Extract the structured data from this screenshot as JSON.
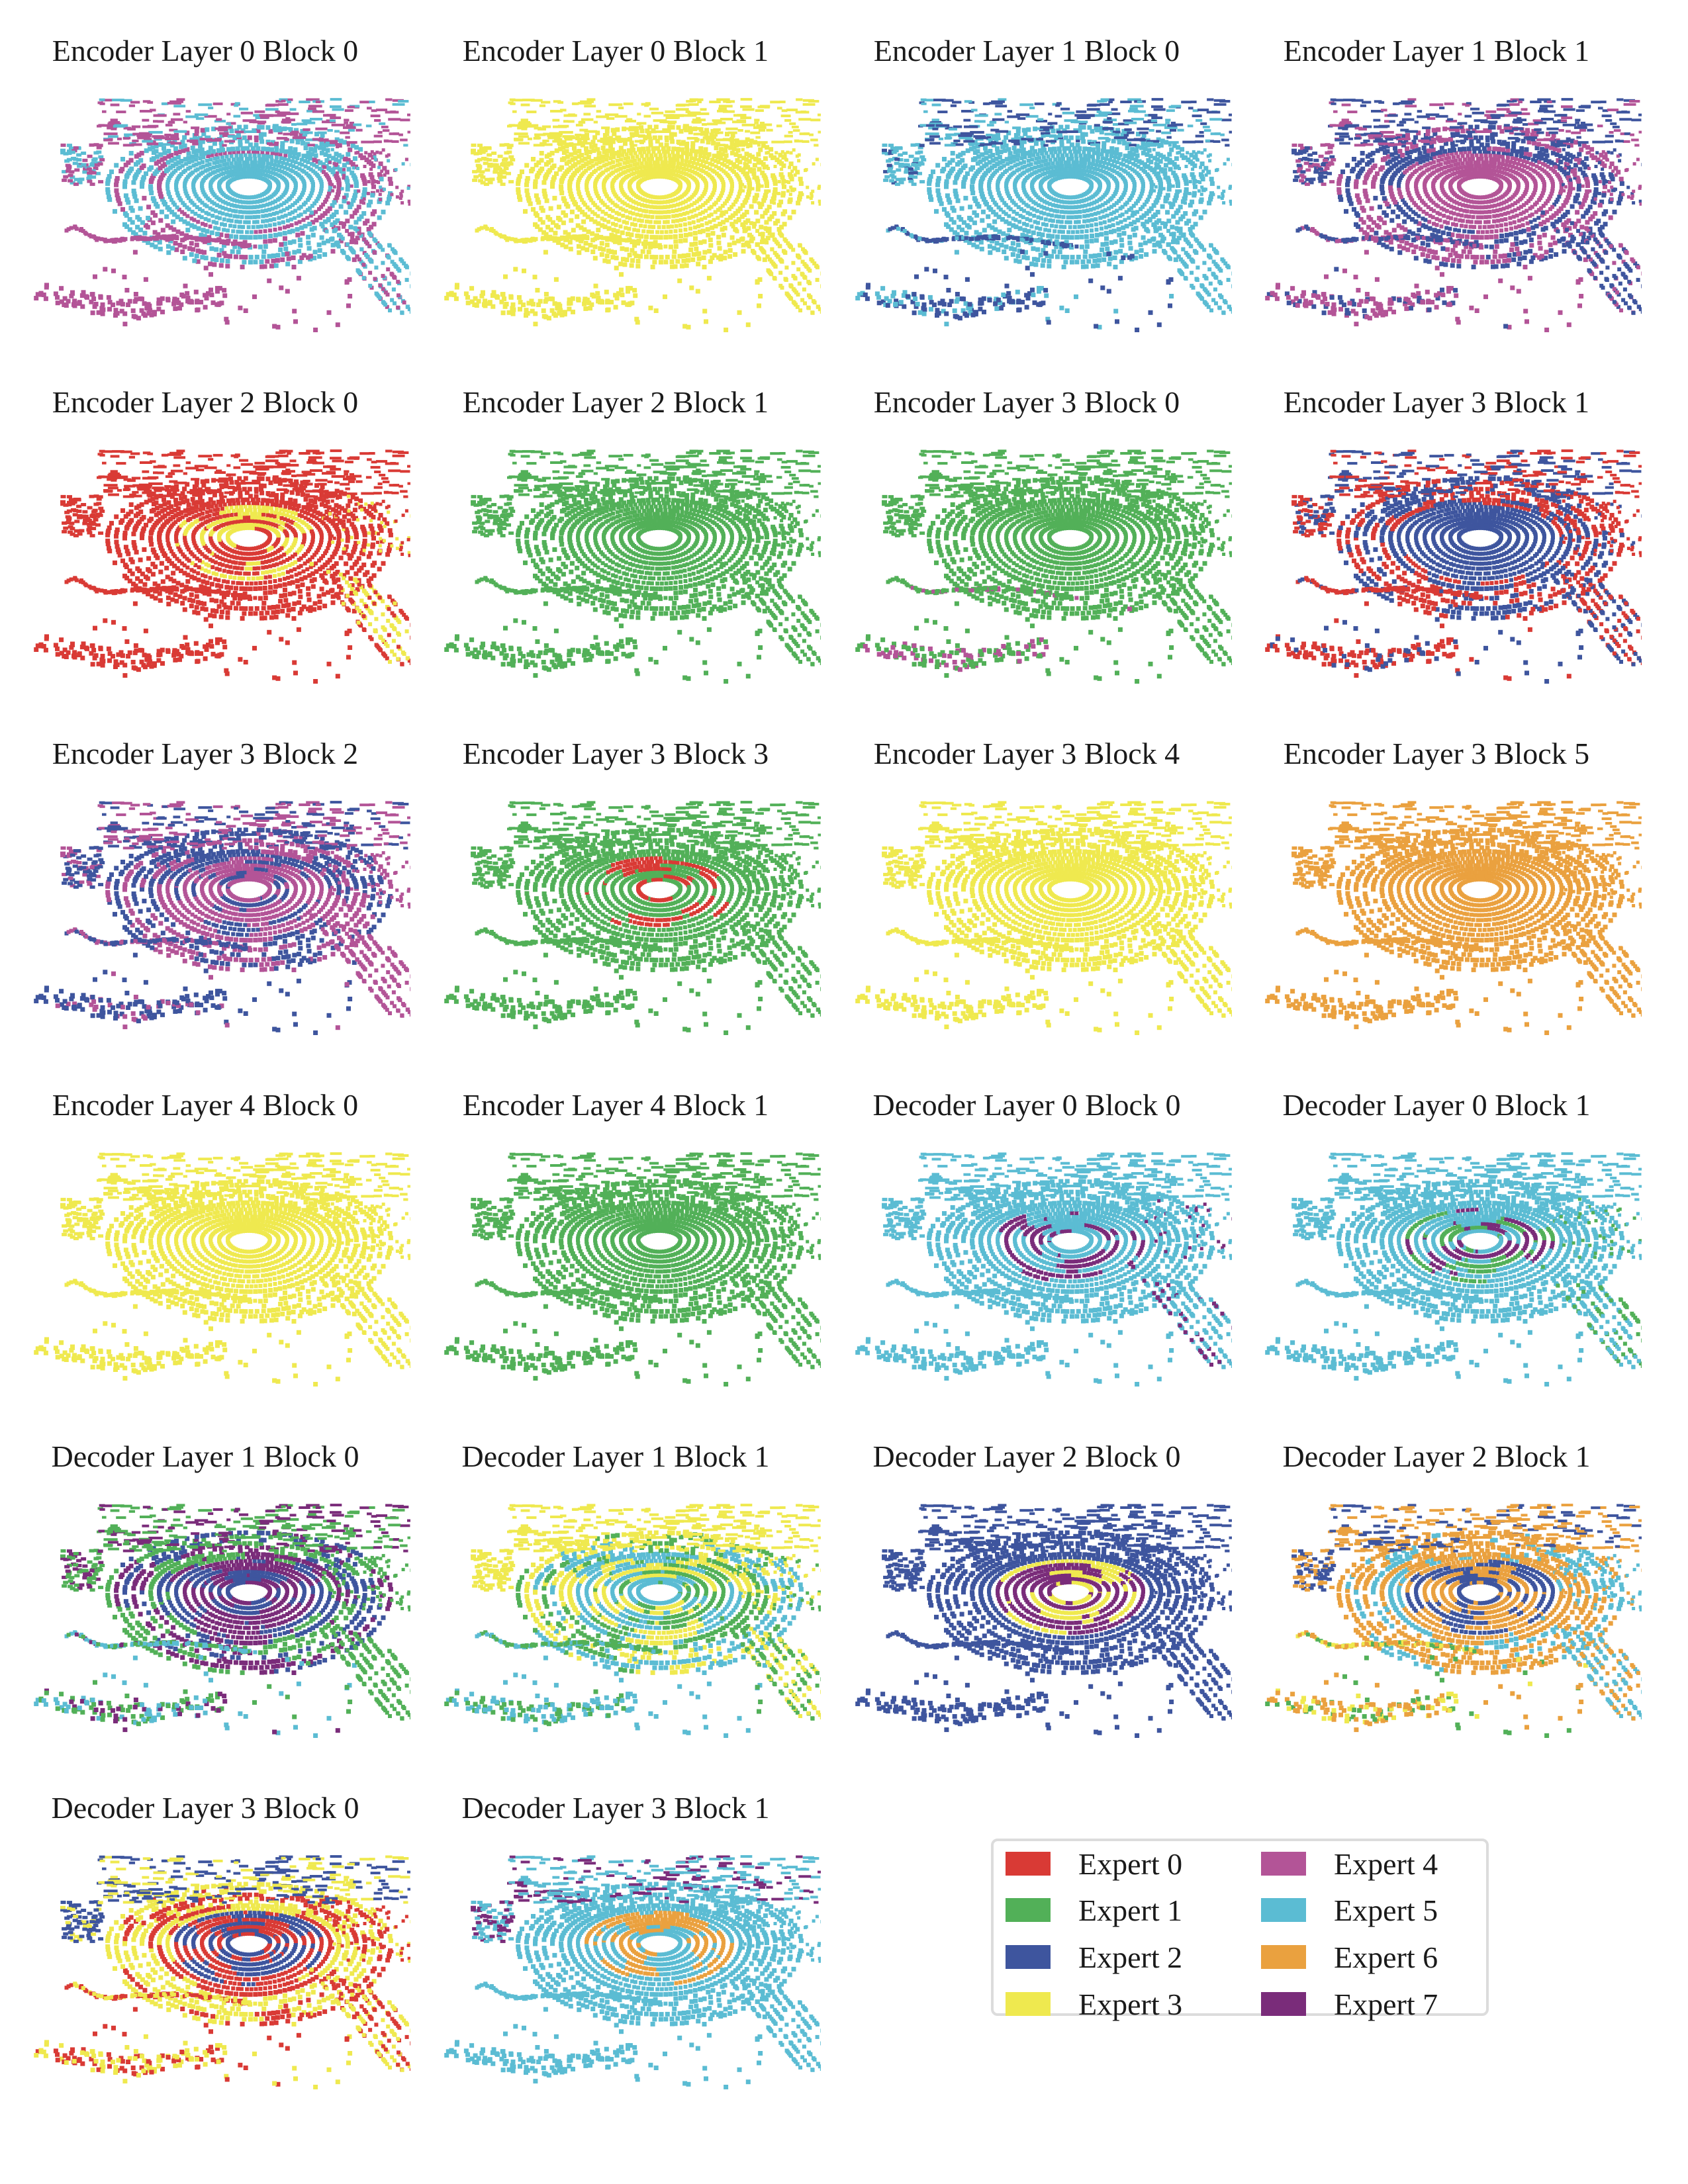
{
  "chart_data": {
    "type": "scatter",
    "title": "",
    "legend": {
      "placement": "bottom-right",
      "entries": [
        {
          "label": "Expert 0",
          "color": "#d93a35"
        },
        {
          "label": "Expert 1",
          "color": "#52b058"
        },
        {
          "label": "Expert 2",
          "color": "#3e559e"
        },
        {
          "label": "Expert 3",
          "color": "#efe94f"
        },
        {
          "label": "Expert 4",
          "color": "#b35497"
        },
        {
          "label": "Expert 5",
          "color": "#5bbcd3"
        },
        {
          "label": "Expert 6",
          "color": "#eaa13f"
        },
        {
          "label": "Expert 7",
          "color": "#7a2c7a"
        }
      ]
    },
    "panels": [
      {
        "title": "Encoder Layer 0 Block 0",
        "regions": {
          "center": [
            5
          ],
          "ring": [
            5,
            5,
            4
          ],
          "top": [
            5,
            4
          ],
          "lower": [
            4
          ],
          "right": [
            5,
            4
          ]
        }
      },
      {
        "title": "Encoder Layer 0 Block 1",
        "regions": {
          "center": [
            3
          ],
          "ring": [
            3
          ],
          "top": [
            3
          ],
          "lower": [
            3
          ],
          "right": [
            3
          ]
        }
      },
      {
        "title": "Encoder Layer 1 Block 0",
        "regions": {
          "center": [
            5
          ],
          "ring": [
            5
          ],
          "top": [
            5,
            2
          ],
          "lower": [
            2,
            2,
            5
          ],
          "right": [
            5
          ]
        }
      },
      {
        "title": "Encoder Layer 1 Block 1",
        "regions": {
          "center": [
            4
          ],
          "ring": [
            2,
            4
          ],
          "top": [
            4,
            2
          ],
          "lower": [
            2,
            4
          ],
          "right": [
            4,
            2
          ]
        }
      },
      {
        "title": "Encoder Layer 2 Block 0",
        "regions": {
          "center": [
            0,
            0,
            3
          ],
          "ring": [
            0
          ],
          "top": [
            0
          ],
          "lower": [
            0
          ],
          "right": [
            0,
            0,
            3
          ]
        }
      },
      {
        "title": "Encoder Layer 2 Block 1",
        "regions": {
          "center": [
            1
          ],
          "ring": [
            1
          ],
          "top": [
            1
          ],
          "lower": [
            1
          ],
          "right": [
            1
          ]
        }
      },
      {
        "title": "Encoder Layer 3 Block 0",
        "regions": {
          "center": [
            1
          ],
          "ring": [
            1
          ],
          "top": [
            1
          ],
          "lower": [
            1,
            1,
            1,
            4
          ],
          "right": [
            1
          ]
        }
      },
      {
        "title": "Encoder Layer 3 Block 1",
        "regions": {
          "center": [
            2
          ],
          "ring": [
            2,
            0
          ],
          "top": [
            0,
            2
          ],
          "lower": [
            0,
            0,
            2
          ],
          "right": [
            2,
            0
          ]
        }
      },
      {
        "title": "Encoder Layer 3 Block 2",
        "regions": {
          "center": [
            4,
            4,
            2
          ],
          "ring": [
            2,
            4
          ],
          "top": [
            4,
            2
          ],
          "lower": [
            2,
            2,
            4
          ],
          "right": [
            4
          ]
        }
      },
      {
        "title": "Encoder Layer 3 Block 3",
        "regions": {
          "center": [
            1,
            1,
            1,
            1,
            0
          ],
          "ring": [
            1
          ],
          "top": [
            1
          ],
          "lower": [
            1
          ],
          "right": [
            1
          ]
        }
      },
      {
        "title": "Encoder Layer 3 Block 4",
        "regions": {
          "center": [
            3
          ],
          "ring": [
            3
          ],
          "top": [
            3
          ],
          "lower": [
            3
          ],
          "right": [
            3
          ]
        }
      },
      {
        "title": "Encoder Layer 3 Block 5",
        "regions": {
          "center": [
            6
          ],
          "ring": [
            6
          ],
          "top": [
            6
          ],
          "lower": [
            6
          ],
          "right": [
            6
          ]
        }
      },
      {
        "title": "Encoder Layer 4 Block 0",
        "regions": {
          "center": [
            3
          ],
          "ring": [
            3
          ],
          "top": [
            3
          ],
          "lower": [
            3
          ],
          "right": [
            3
          ]
        }
      },
      {
        "title": "Encoder Layer 4 Block 1",
        "regions": {
          "center": [
            1
          ],
          "ring": [
            1
          ],
          "top": [
            1
          ],
          "lower": [
            1
          ],
          "right": [
            1
          ]
        }
      },
      {
        "title": "Decoder Layer 0 Block 0",
        "regions": {
          "center": [
            5,
            5,
            5,
            7
          ],
          "ring": [
            5
          ],
          "top": [
            5
          ],
          "lower": [
            5
          ],
          "right": [
            5,
            5,
            7
          ]
        }
      },
      {
        "title": "Decoder Layer 0 Block 1",
        "regions": {
          "center": [
            5,
            5,
            7,
            1
          ],
          "ring": [
            5
          ],
          "top": [
            5
          ],
          "lower": [
            5
          ],
          "right": [
            5,
            5,
            1
          ]
        }
      },
      {
        "title": "Decoder Layer 1 Block 0",
        "regions": {
          "center": [
            2,
            7
          ],
          "ring": [
            2,
            1,
            7
          ],
          "top": [
            1,
            7
          ],
          "lower": [
            7,
            5,
            1
          ],
          "right": [
            1
          ]
        }
      },
      {
        "title": "Decoder Layer 1 Block 1",
        "regions": {
          "center": [
            3,
            5,
            1
          ],
          "ring": [
            5,
            3,
            1
          ],
          "top": [
            3
          ],
          "lower": [
            5,
            1
          ],
          "right": [
            1,
            3
          ]
        }
      },
      {
        "title": "Decoder Layer 2 Block 0",
        "regions": {
          "center": [
            7,
            7,
            3
          ],
          "ring": [
            2
          ],
          "top": [
            2
          ],
          "lower": [
            2
          ],
          "right": [
            2
          ]
        }
      },
      {
        "title": "Decoder Layer 2 Block 1",
        "regions": {
          "center": [
            2,
            6
          ],
          "ring": [
            5,
            6
          ],
          "top": [
            6,
            2
          ],
          "lower": [
            3,
            1,
            6
          ],
          "right": [
            5,
            6
          ]
        }
      },
      {
        "title": "Decoder Layer 3 Block 0",
        "regions": {
          "center": [
            0,
            2
          ],
          "ring": [
            3,
            0
          ],
          "top": [
            3,
            2
          ],
          "lower": [
            3,
            3,
            0
          ],
          "right": [
            0,
            3
          ]
        }
      },
      {
        "title": "Decoder Layer 3 Block 1",
        "regions": {
          "center": [
            6,
            5
          ],
          "ring": [
            5
          ],
          "top": [
            7,
            5
          ],
          "lower": [
            5
          ],
          "right": [
            5
          ]
        }
      }
    ]
  }
}
